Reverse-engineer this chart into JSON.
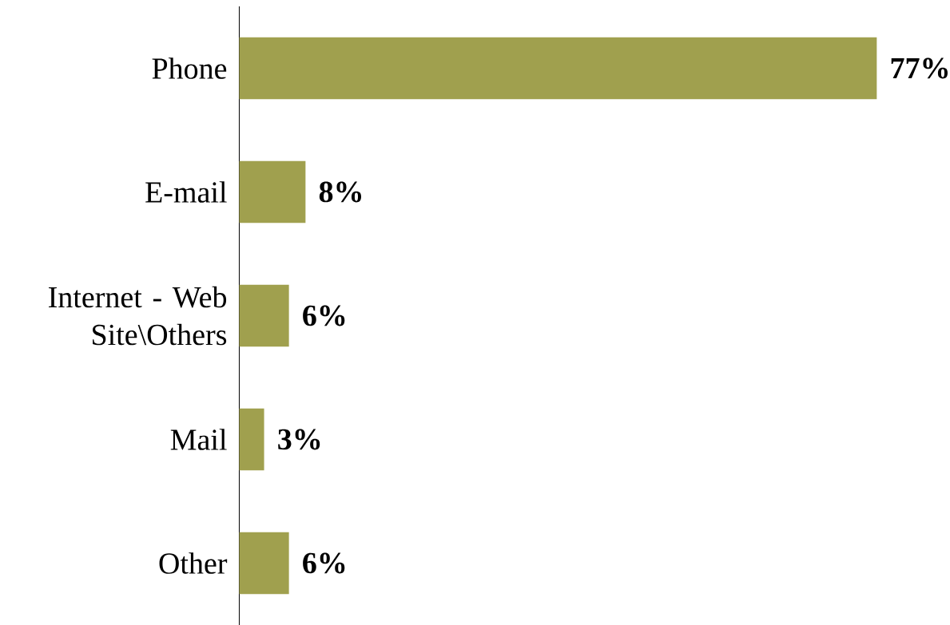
{
  "chart_data": {
    "type": "bar",
    "orientation": "horizontal",
    "categories": [
      "Phone",
      "E-mail",
      "Internet - Web Site\\Others",
      "Mail",
      "Other"
    ],
    "values": [
      77,
      8,
      6,
      3,
      6
    ],
    "value_labels": [
      "77%",
      "8%",
      "6%",
      "3%",
      "6%"
    ],
    "color": "#a0a04e"
  }
}
